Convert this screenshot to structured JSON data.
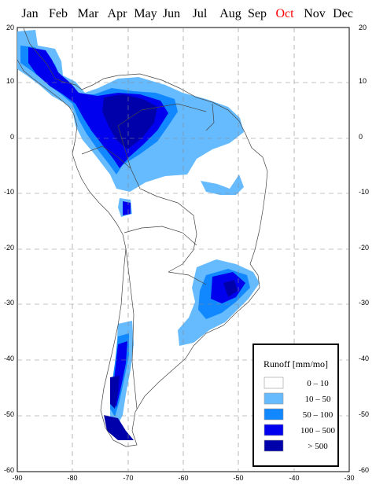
{
  "months": [
    "Jan",
    "Feb",
    "Mar",
    "Apr",
    "May",
    "Jun",
    "Jul",
    "Aug",
    "Sep",
    "Oct",
    "Nov",
    "Dec"
  ],
  "selected_month": "Oct",
  "selected_color": "#ff0000",
  "axes": {
    "lon_ticks": [
      "-90",
      "-80",
      "-70",
      "-60",
      "-50",
      "-40",
      "-30"
    ],
    "lat_ticks": [
      "20",
      "10",
      "0",
      "-10",
      "-20",
      "-30",
      "-40",
      "-50",
      "-60"
    ]
  },
  "legend": {
    "title": "Runoff [mm/mo]",
    "items": [
      {
        "label": "0  –  10",
        "color": "#ffffff"
      },
      {
        "label": "10  –  50",
        "color": "#66bbff"
      },
      {
        "label": "50  –  100",
        "color": "#1188ff"
      },
      {
        "label": "100  –  500",
        "color": "#0000ee"
      },
      {
        "label": "> 500",
        "color": "#0000aa"
      }
    ]
  }
}
